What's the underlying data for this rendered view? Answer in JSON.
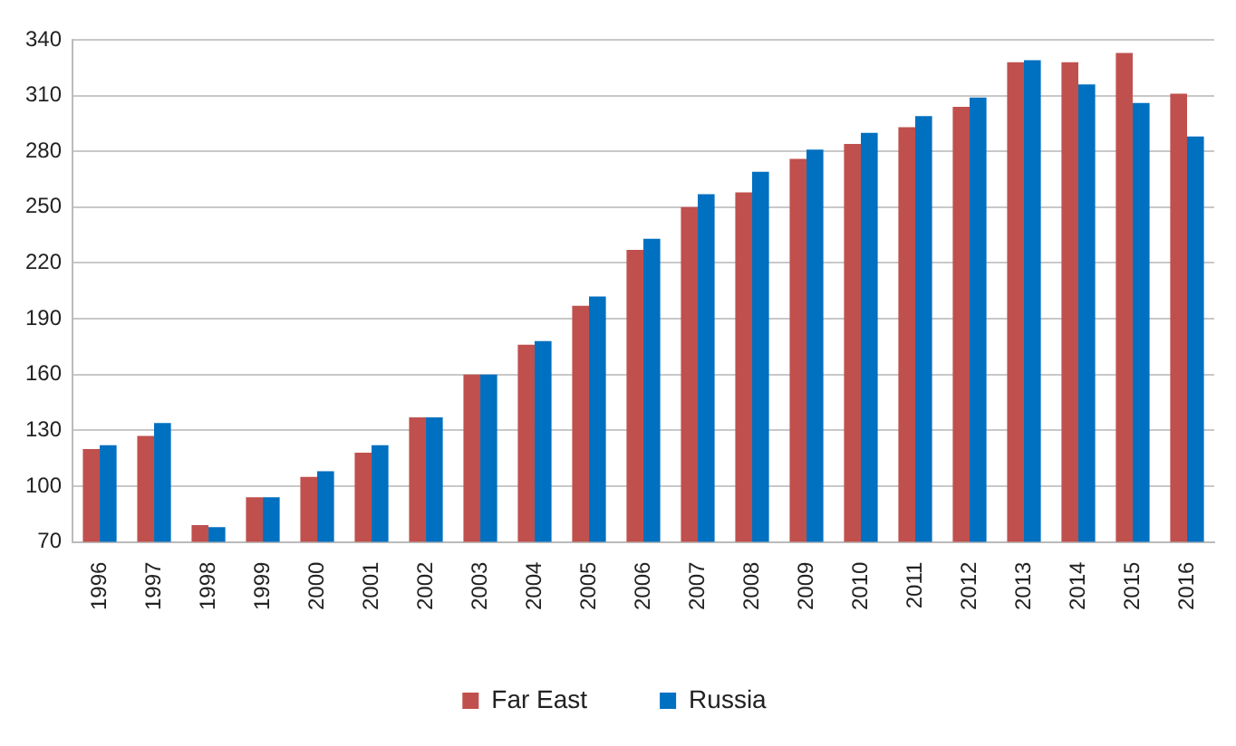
{
  "chart_data": {
    "type": "bar",
    "categories": [
      "1996",
      "1997",
      "1998",
      "1999",
      "2000",
      "2001",
      "2002",
      "2003",
      "2004",
      "2005",
      "2006",
      "2007",
      "2008",
      "2009",
      "2010",
      "2011",
      "2012",
      "2013",
      "2014",
      "2015",
      "2016"
    ],
    "series": [
      {
        "name": "Far East",
        "color": "#c0504d",
        "values": [
          120,
          127,
          79,
          94,
          105,
          118,
          137,
          160,
          176,
          197,
          227,
          250,
          258,
          276,
          284,
          293,
          304,
          328,
          328,
          333,
          311
        ]
      },
      {
        "name": "Russia",
        "color": "#0070c0",
        "values": [
          122,
          134,
          78,
          94,
          108,
          122,
          137,
          160,
          178,
          202,
          233,
          257,
          269,
          281,
          290,
          299,
          309,
          329,
          316,
          306,
          288
        ]
      }
    ],
    "ylim": [
      70,
      340
    ],
    "yticks": [
      70,
      100,
      130,
      160,
      190,
      220,
      250,
      280,
      310,
      340
    ],
    "grid": "y",
    "legend": "bottom"
  }
}
